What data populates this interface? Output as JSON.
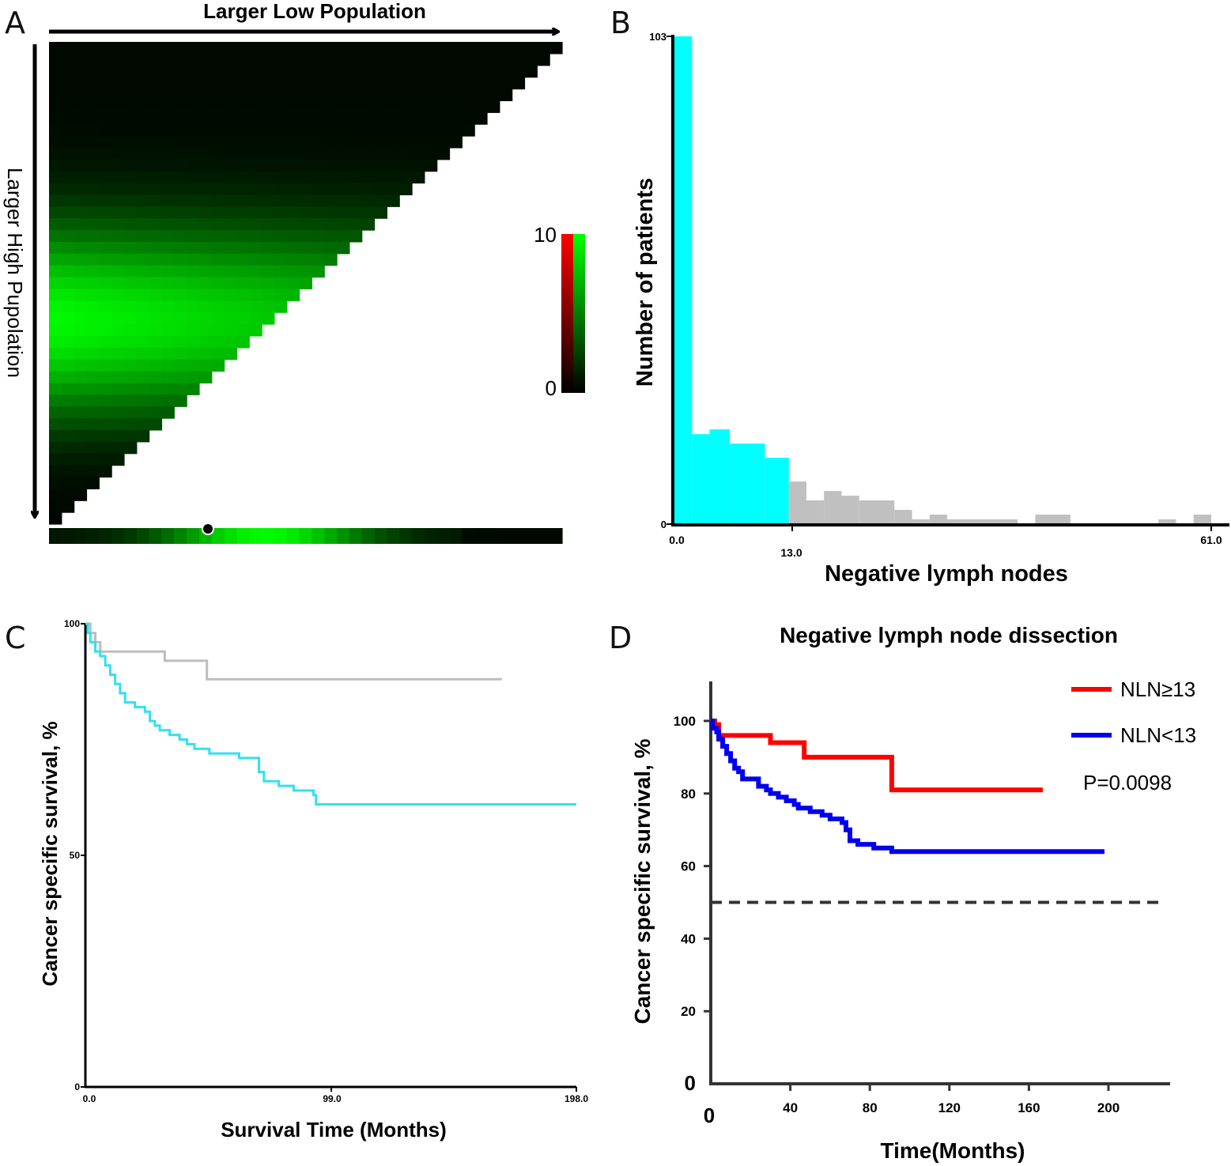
{
  "chart_data": [
    {
      "panel": "A",
      "type": "heatmap",
      "title": "",
      "xlabel": "Larger Low Population",
      "ylabel": "Larger High Pupolation",
      "colorbar": {
        "min_label": "0",
        "max_label": "10",
        "range": [
          0,
          10
        ],
        "colors": [
          "#000000",
          "#ff0000",
          "#00ff00"
        ]
      },
      "grid_size": 41,
      "peak_row_fraction": 0.58
    },
    {
      "panel": "B",
      "type": "bar",
      "title": "",
      "xlabel": "Negative lymph nodes",
      "ylabel": "Number of patients",
      "y_ticks": [
        "103",
        "0"
      ],
      "x_ticks": [
        "0.0",
        "13.0",
        "61.0"
      ],
      "xlim": [
        0,
        61
      ],
      "ylim": [
        0,
        103
      ],
      "cutoff": 13,
      "colors": {
        "below_cutoff": "#00ffff",
        "above_cutoff": "#c0c0c0"
      },
      "bins": [
        {
          "start": 0,
          "end": 2,
          "value": 103
        },
        {
          "start": 2,
          "end": 4,
          "value": 19
        },
        {
          "start": 4,
          "end": 6.3,
          "value": 20
        },
        {
          "start": 6.3,
          "end": 10.3,
          "value": 17
        },
        {
          "start": 10.3,
          "end": 13,
          "value": 14
        },
        {
          "start": 13,
          "end": 15,
          "value": 9
        },
        {
          "start": 15,
          "end": 17,
          "value": 5
        },
        {
          "start": 17,
          "end": 19,
          "value": 7
        },
        {
          "start": 19,
          "end": 21,
          "value": 6
        },
        {
          "start": 21,
          "end": 25,
          "value": 5
        },
        {
          "start": 25,
          "end": 27,
          "value": 3
        },
        {
          "start": 27,
          "end": 29,
          "value": 1
        },
        {
          "start": 29,
          "end": 31,
          "value": 2
        },
        {
          "start": 31,
          "end": 39,
          "value": 1
        },
        {
          "start": 39,
          "end": 41,
          "value": 0
        },
        {
          "start": 41,
          "end": 45,
          "value": 2
        },
        {
          "start": 45,
          "end": 55,
          "value": 0
        },
        {
          "start": 55,
          "end": 57,
          "value": 1
        },
        {
          "start": 57,
          "end": 59,
          "value": 0
        },
        {
          "start": 59,
          "end": 61,
          "value": 2
        }
      ]
    },
    {
      "panel": "C",
      "type": "line",
      "title": "",
      "xlabel": "Survival Time (Months)",
      "ylabel": "Cancer specific survival, %",
      "x_ticks": [
        "0.0",
        "99.0",
        "198.0"
      ],
      "y_ticks": [
        "100",
        "50",
        "0"
      ],
      "xlim": [
        0,
        198
      ],
      "ylim": [
        0,
        100
      ],
      "series": [
        {
          "color": "#bdbdbd",
          "points": [
            [
              0,
              100
            ],
            [
              2,
              98
            ],
            [
              4,
              96
            ],
            [
              6,
              94
            ],
            [
              32,
              94
            ],
            [
              32,
              92
            ],
            [
              49,
              92
            ],
            [
              49,
              88
            ],
            [
              168,
              88
            ]
          ]
        },
        {
          "color": "#33e0f0",
          "points": [
            [
              0,
              100
            ],
            [
              1,
              98
            ],
            [
              2,
              96
            ],
            [
              4,
              94
            ],
            [
              6,
              93
            ],
            [
              8,
              91
            ],
            [
              10,
              89
            ],
            [
              12,
              87
            ],
            [
              14,
              85
            ],
            [
              16,
              83
            ],
            [
              20,
              82
            ],
            [
              24,
              81
            ],
            [
              26,
              79
            ],
            [
              28,
              78
            ],
            [
              30,
              77
            ],
            [
              34,
              76
            ],
            [
              38,
              75
            ],
            [
              41,
              74
            ],
            [
              44,
              73
            ],
            [
              50,
              72
            ],
            [
              62,
              71
            ],
            [
              70,
              68
            ],
            [
              72,
              66
            ],
            [
              78,
              65
            ],
            [
              84,
              64
            ],
            [
              92,
              63
            ],
            [
              93,
              61
            ],
            [
              198,
              61
            ]
          ]
        }
      ]
    },
    {
      "panel": "D",
      "type": "line",
      "title": "Negative lymph node dissection",
      "xlabel": "Time(Months)",
      "ylabel": "Cancer specific survival, %",
      "x_ticks": [
        "0",
        "40",
        "80",
        "120",
        "160",
        "200"
      ],
      "y_ticks": [
        "100",
        "80",
        "60",
        "40",
        "20",
        "0"
      ],
      "xlim": [
        0,
        230
      ],
      "ylim": [
        0,
        110
      ],
      "reference_line": {
        "y": 50,
        "style": "dashed"
      },
      "annotation": "P=0.0098",
      "legend_position": "top-right",
      "series": [
        {
          "name": "NLN≥13",
          "color": "#ff0000",
          "points": [
            [
              0,
              100
            ],
            [
              2,
              100
            ],
            [
              2,
              99
            ],
            [
              4,
              99
            ],
            [
              4,
              96
            ],
            [
              30,
              96
            ],
            [
              30,
              94
            ],
            [
              47,
              94
            ],
            [
              47,
              90
            ],
            [
              91,
              90
            ],
            [
              91,
              81
            ],
            [
              167,
              81
            ]
          ]
        },
        {
          "name": "NLN<13",
          "color": "#0000ee",
          "points": [
            [
              0,
              100
            ],
            [
              1,
              98
            ],
            [
              3,
              97
            ],
            [
              4,
              95
            ],
            [
              6,
              93
            ],
            [
              8,
              91
            ],
            [
              10,
              89
            ],
            [
              12,
              87
            ],
            [
              14,
              86
            ],
            [
              16,
              84
            ],
            [
              22,
              84
            ],
            [
              24,
              82
            ],
            [
              28,
              81
            ],
            [
              30,
              80
            ],
            [
              34,
              79
            ],
            [
              38,
              78
            ],
            [
              42,
              77
            ],
            [
              44,
              76
            ],
            [
              50,
              75
            ],
            [
              56,
              74
            ],
            [
              60,
              73
            ],
            [
              66,
              72
            ],
            [
              68,
              70
            ],
            [
              70,
              67
            ],
            [
              74,
              66
            ],
            [
              82,
              65
            ],
            [
              88,
              65
            ],
            [
              91,
              64
            ],
            [
              198,
              64
            ]
          ]
        }
      ]
    }
  ]
}
